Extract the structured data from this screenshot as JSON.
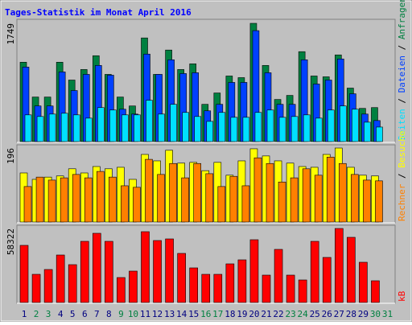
{
  "chart_data": [
    {
      "type": "bar",
      "title": "Tages-Statistik im Monat April 2016",
      "title_color": "#0000ff",
      "ylim": [
        0,
        1749
      ],
      "yticks": [
        1749
      ],
      "legend_separator": " / ",
      "series": [
        {
          "name": "Anfragen",
          "color": "#008040",
          "values": [
            1174,
            659,
            659,
            1174,
            910,
            1066,
            1270,
            994,
            659,
            527,
            1533,
            994,
            1354,
            1066,
            1150,
            551,
            719,
            970,
            946,
            1749,
            1126,
            623,
            683,
            1330,
            970,
            958,
            1282,
            791,
            491,
            503,
            null
          ]
        },
        {
          "name": "Dateien",
          "color": "#0040ff",
          "values": [
            1102,
            527,
            527,
            1030,
            755,
            994,
            1126,
            982,
            479,
            407,
            1294,
            994,
            1210,
            1006,
            1018,
            455,
            551,
            875,
            875,
            1641,
            1018,
            551,
            551,
            1210,
            851,
            910,
            1222,
            707,
            407,
            311,
            null
          ]
        },
        {
          "name": "Seiten",
          "color": "#00e0ff",
          "values": [
            395,
            371,
            407,
            419,
            395,
            347,
            503,
            467,
            395,
            395,
            611,
            407,
            551,
            431,
            371,
            299,
            431,
            359,
            359,
            431,
            467,
            359,
            371,
            395,
            347,
            467,
            527,
            479,
            287,
            215,
            null
          ]
        }
      ]
    },
    {
      "type": "bar",
      "ylim": [
        0,
        196
      ],
      "yticks": [
        196
      ],
      "legend_separator": " / ",
      "series": [
        {
          "name": "Besuche",
          "color": "#ffff00",
          "values": [
            130,
            113,
            119,
            122,
            141,
            130,
            147,
            141,
            145,
            113,
            179,
            162,
            190,
            156,
            158,
            136,
            158,
            124,
            162,
            194,
            175,
            162,
            156,
            147,
            145,
            179,
            196,
            145,
            124,
            122,
            null
          ]
        },
        {
          "name": "Rechner",
          "color": "#ff8000",
          "values": [
            94,
            119,
            111,
            117,
            126,
            117,
            134,
            119,
            96,
            92,
            166,
            126,
            155,
            117,
            155,
            128,
            94,
            121,
            96,
            170,
            155,
            106,
            117,
            141,
            124,
            172,
            155,
            126,
            111,
            109,
            null
          ]
        }
      ]
    },
    {
      "type": "bar",
      "ylim": [
        0,
        58322
      ],
      "yticks": [
        58322
      ],
      "categories": [
        "1",
        "2",
        "3",
        "4",
        "5",
        "6",
        "7",
        "8",
        "9",
        "10",
        "11",
        "12",
        "13",
        "14",
        "15",
        "16",
        "17",
        "18",
        "19",
        "20",
        "21",
        "22",
        "23",
        "24",
        "25",
        "26",
        "27",
        "28",
        "29",
        "30",
        "31"
      ],
      "category_colors": [
        "#000080",
        "#008040",
        "#008040",
        "#000080",
        "#000080",
        "#000080",
        "#000080",
        "#000080",
        "#008040",
        "#008040",
        "#000080",
        "#000080",
        "#000080",
        "#000080",
        "#000080",
        "#008040",
        "#008040",
        "#000080",
        "#000080",
        "#000080",
        "#000080",
        "#000080",
        "#008040",
        "#008040",
        "#000080",
        "#000080",
        "#000080",
        "#000080",
        "#000080",
        "#008040",
        "#008040"
      ],
      "series": [
        {
          "name": "kB",
          "color": "#ff0000",
          "values": [
            45014,
            22190,
            25994,
            37406,
            29798,
            48184,
            54524,
            48184,
            19654,
            24726,
            55792,
            48818,
            50086,
            38674,
            27262,
            22190,
            22190,
            30432,
            33602,
            49452,
            21556,
            41844,
            21556,
            17752,
            48184,
            35504,
            58322,
            51354,
            31700,
            17118,
            null
          ]
        }
      ]
    }
  ]
}
